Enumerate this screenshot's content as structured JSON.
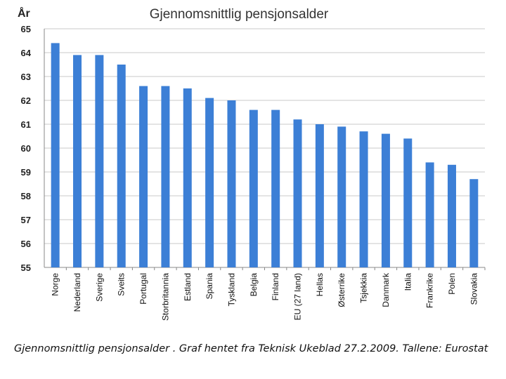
{
  "chart_data": {
    "type": "bar",
    "title": "Gjennomsnittlig pensjonsalder",
    "ylabel": "År",
    "xlabel": "",
    "ylim": [
      55,
      65
    ],
    "yticks": [
      55,
      56,
      57,
      58,
      59,
      60,
      61,
      62,
      63,
      64,
      65
    ],
    "grid": true,
    "categories": [
      "Norge",
      "Nederland",
      "Sverige",
      "Sveits",
      "Portugal",
      "Storbritannia",
      "Estland",
      "Spania",
      "Tyskland",
      "Belgia",
      "Finland",
      "EU (27 land)",
      "Hellas",
      "Østerrike",
      "Tsjekkia",
      "Danmark",
      "Italia",
      "Frankrike",
      "Polen",
      "Slovakia"
    ],
    "values": [
      64.4,
      63.9,
      63.9,
      63.5,
      62.6,
      62.6,
      62.5,
      62.1,
      62.0,
      61.6,
      61.6,
      61.2,
      61.0,
      60.9,
      60.7,
      60.6,
      60.4,
      59.4,
      59.3,
      58.7
    ],
    "bar_color": "#3c7fd6"
  },
  "caption": "Gjennomsnittlig pensjonsalder . Graf hentet fra Teknisk Ukeblad 27.2.2009. Tallene: Eurostat"
}
